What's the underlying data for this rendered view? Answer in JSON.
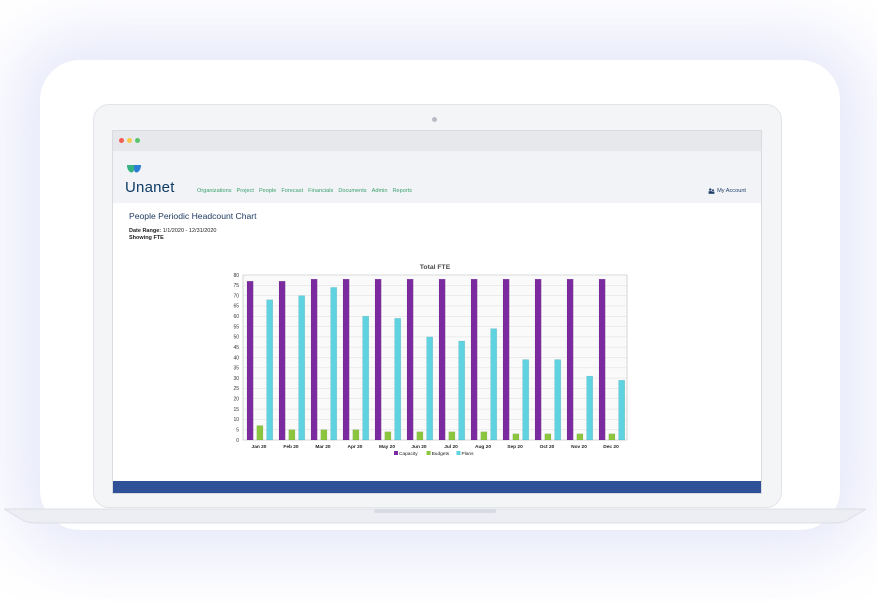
{
  "app": {
    "logo_text": "Unanet",
    "nav": [
      "Organizations",
      "Project",
      "People",
      "Forecast",
      "Financials",
      "Documents",
      "Admin",
      "Reports"
    ],
    "account_label": "My Account"
  },
  "report": {
    "title": "People Periodic Headcount Chart",
    "date_range_label": "Date Range:",
    "date_range_value": "1/1/2020 - 12/31/2020",
    "showing": "Showing FTE"
  },
  "colors": {
    "capacity": "#7b2aa0",
    "budgets": "#8cc63f",
    "plans": "#5fd3e0",
    "footer": "#2e5197",
    "nav": "#3aa06f"
  },
  "chart_data": {
    "type": "bar",
    "title": "Total FTE",
    "categories": [
      "Jan 20",
      "Feb 20",
      "Mar 20",
      "Apr 20",
      "May 20",
      "Jun 20",
      "Jul 20",
      "Aug 20",
      "Sep 20",
      "Oct 20",
      "Nov 20",
      "Dec 20"
    ],
    "series": [
      {
        "name": "Capacity",
        "values": [
          77,
          77,
          78,
          78,
          78,
          78,
          78,
          78,
          78,
          78,
          78,
          78
        ]
      },
      {
        "name": "Budgets",
        "values": [
          7,
          5,
          5,
          5,
          4,
          4,
          4,
          4,
          3,
          3,
          3,
          3
        ]
      },
      {
        "name": "Plans",
        "values": [
          68,
          70,
          74,
          60,
          59,
          50,
          48,
          54,
          39,
          39,
          31,
          29
        ]
      }
    ],
    "ylim": [
      0,
      80
    ],
    "yticks": [
      0,
      5,
      10,
      15,
      20,
      25,
      30,
      35,
      40,
      45,
      50,
      55,
      60,
      65,
      70,
      75,
      80
    ],
    "legend": "bottom-center",
    "grid": true
  }
}
